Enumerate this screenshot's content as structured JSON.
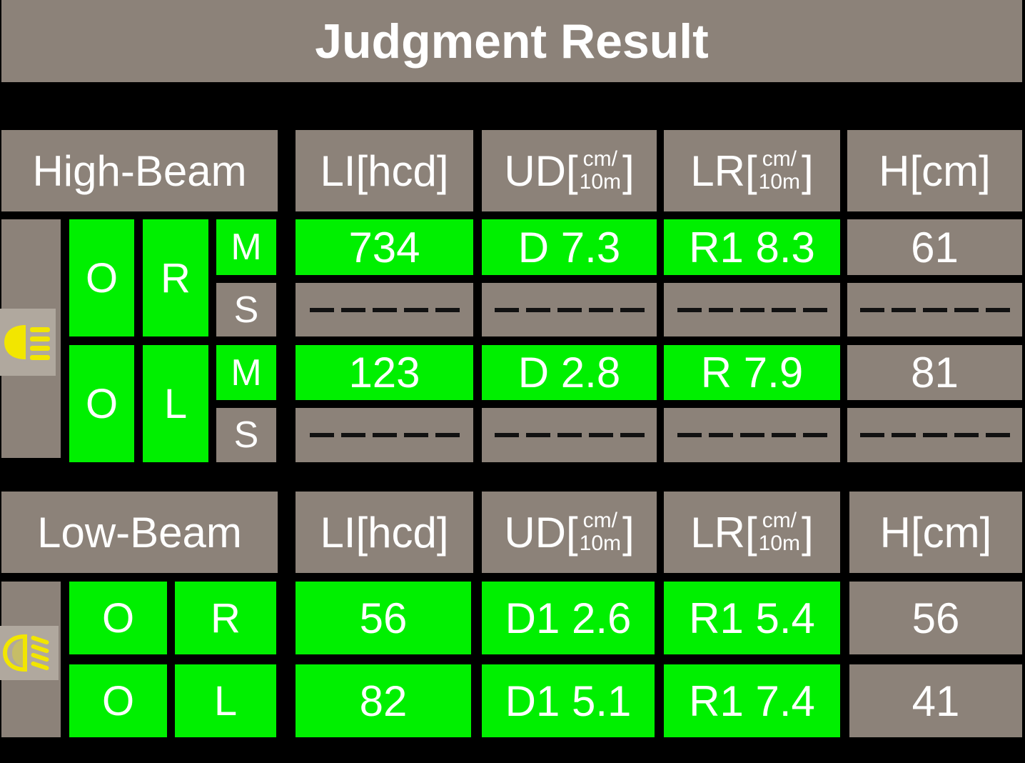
{
  "title": "Judgment Result",
  "headers": {
    "li": "LI[hcd]",
    "ud": "UD[",
    "lr": "LR[",
    "h": "H[cm]",
    "unit_top": "cm/",
    "unit_bottom": "10m",
    "bracket_close": "]"
  },
  "high_beam": {
    "label": "High-Beam",
    "icon": "high-beam-icon",
    "groups": [
      {
        "judge": "O",
        "side": "R",
        "rows": [
          {
            "type": "M",
            "li": "734",
            "ud": "D 7.3",
            "lr": "R1 8.3",
            "h": "61"
          },
          {
            "type": "S",
            "li": "",
            "ud": "",
            "lr": "",
            "h": ""
          }
        ]
      },
      {
        "judge": "O",
        "side": "L",
        "rows": [
          {
            "type": "M",
            "li": "123",
            "ud": "D 2.8",
            "lr": "R 7.9",
            "h": "81"
          },
          {
            "type": "S",
            "li": "",
            "ud": "",
            "lr": "",
            "h": ""
          }
        ]
      }
    ]
  },
  "low_beam": {
    "label": "Low-Beam",
    "icon": "low-beam-icon",
    "rows": [
      {
        "judge": "O",
        "side": "R",
        "li": "56",
        "ud": "D1 2.6",
        "lr": "R1 5.4",
        "h": "56"
      },
      {
        "judge": "O",
        "side": "L",
        "li": "82",
        "ud": "D1 5.1",
        "lr": "R1 7.4",
        "h": "41"
      }
    ]
  },
  "colors": {
    "panel": "#8c8279",
    "pass": "#00f000",
    "background": "#000000",
    "icon": "#f2e600"
  }
}
